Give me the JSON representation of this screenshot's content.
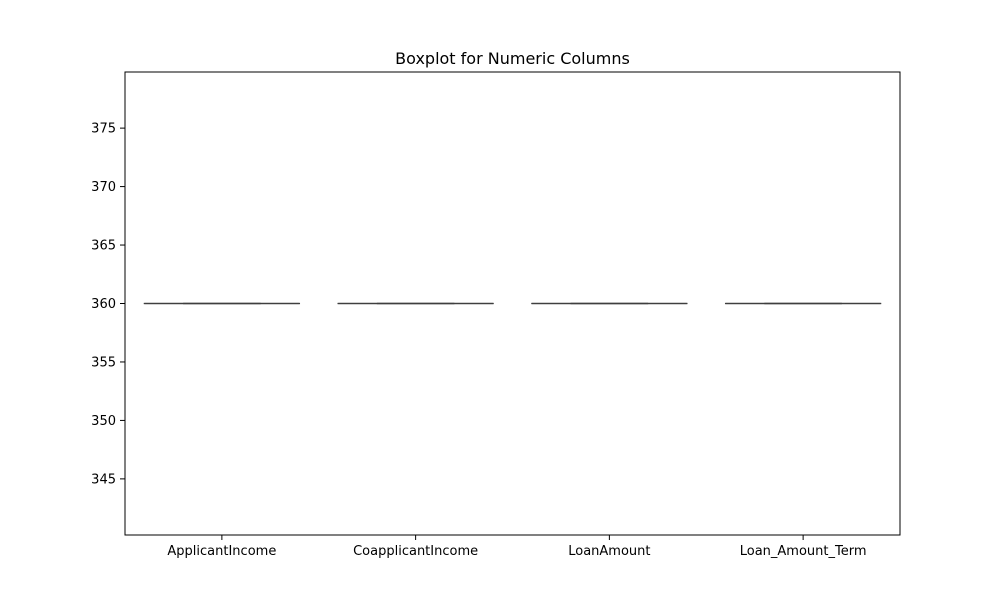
{
  "chart_data": {
    "type": "boxplot",
    "title": "Boxplot for Numeric Columns",
    "xlabel": "",
    "ylabel": "",
    "categories": [
      "ApplicantIncome",
      "CoapplicantIncome",
      "LoanAmount",
      "Loan_Amount_Term"
    ],
    "series": [
      {
        "category": "ApplicantIncome",
        "whisker_low": 360,
        "q1": 360,
        "median": 360,
        "q3": 360,
        "whisker_high": 360
      },
      {
        "category": "CoapplicantIncome",
        "whisker_low": 360,
        "q1": 360,
        "median": 360,
        "q3": 360,
        "whisker_high": 360
      },
      {
        "category": "LoanAmount",
        "whisker_low": 360,
        "q1": 360,
        "median": 360,
        "q3": 360,
        "whisker_high": 360
      },
      {
        "category": "Loan_Amount_Term",
        "whisker_low": 360,
        "q1": 360,
        "median": 360,
        "q3": 360,
        "whisker_high": 360
      }
    ],
    "ylim": [
      340.2,
      379.8
    ],
    "yticks": [
      345,
      350,
      355,
      360,
      365,
      370,
      375
    ],
    "grid": false,
    "colors": {
      "box_line": "#3f3f3f",
      "axis": "#000000"
    }
  }
}
